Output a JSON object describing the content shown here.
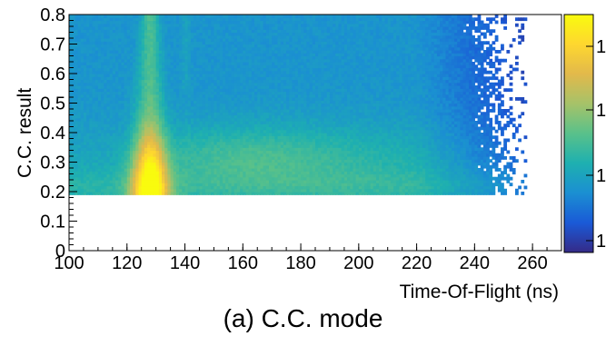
{
  "chart_data": {
    "type": "heatmap",
    "title": "",
    "xlabel": "Time-Of-Flight (ns)",
    "ylabel": "C.C. result",
    "xlim": [
      100,
      270
    ],
    "ylim": [
      0,
      0.8
    ],
    "x_ticks": [
      "100",
      "120",
      "140",
      "160",
      "180",
      "200",
      "220",
      "240",
      "260"
    ],
    "y_ticks": [
      "0",
      "0.1",
      "0.2",
      "0.3",
      "0.4",
      "0.5",
      "0.6",
      "0.7",
      "0.8"
    ],
    "colorbar_labels": [
      "1",
      "1",
      "1",
      "1"
    ],
    "colormap": [
      "#352a87",
      "#1a5ad7",
      "#1b8fd2",
      "#1eb0b0",
      "#59c18a",
      "#a6c269",
      "#e2b94b",
      "#fed72f",
      "#f9fb0e"
    ],
    "features": {
      "data_region": {
        "x_range": [
          100,
          258
        ],
        "y_range": [
          0.19,
          0.8
        ]
      },
      "peak": {
        "x": 128,
        "y_max_intensity": 0.2
      },
      "secondary_band": {
        "x_range": [
          140,
          238
        ],
        "y_range": [
          0.2,
          0.45
        ]
      }
    }
  },
  "caption": "(a) C.C. mode"
}
